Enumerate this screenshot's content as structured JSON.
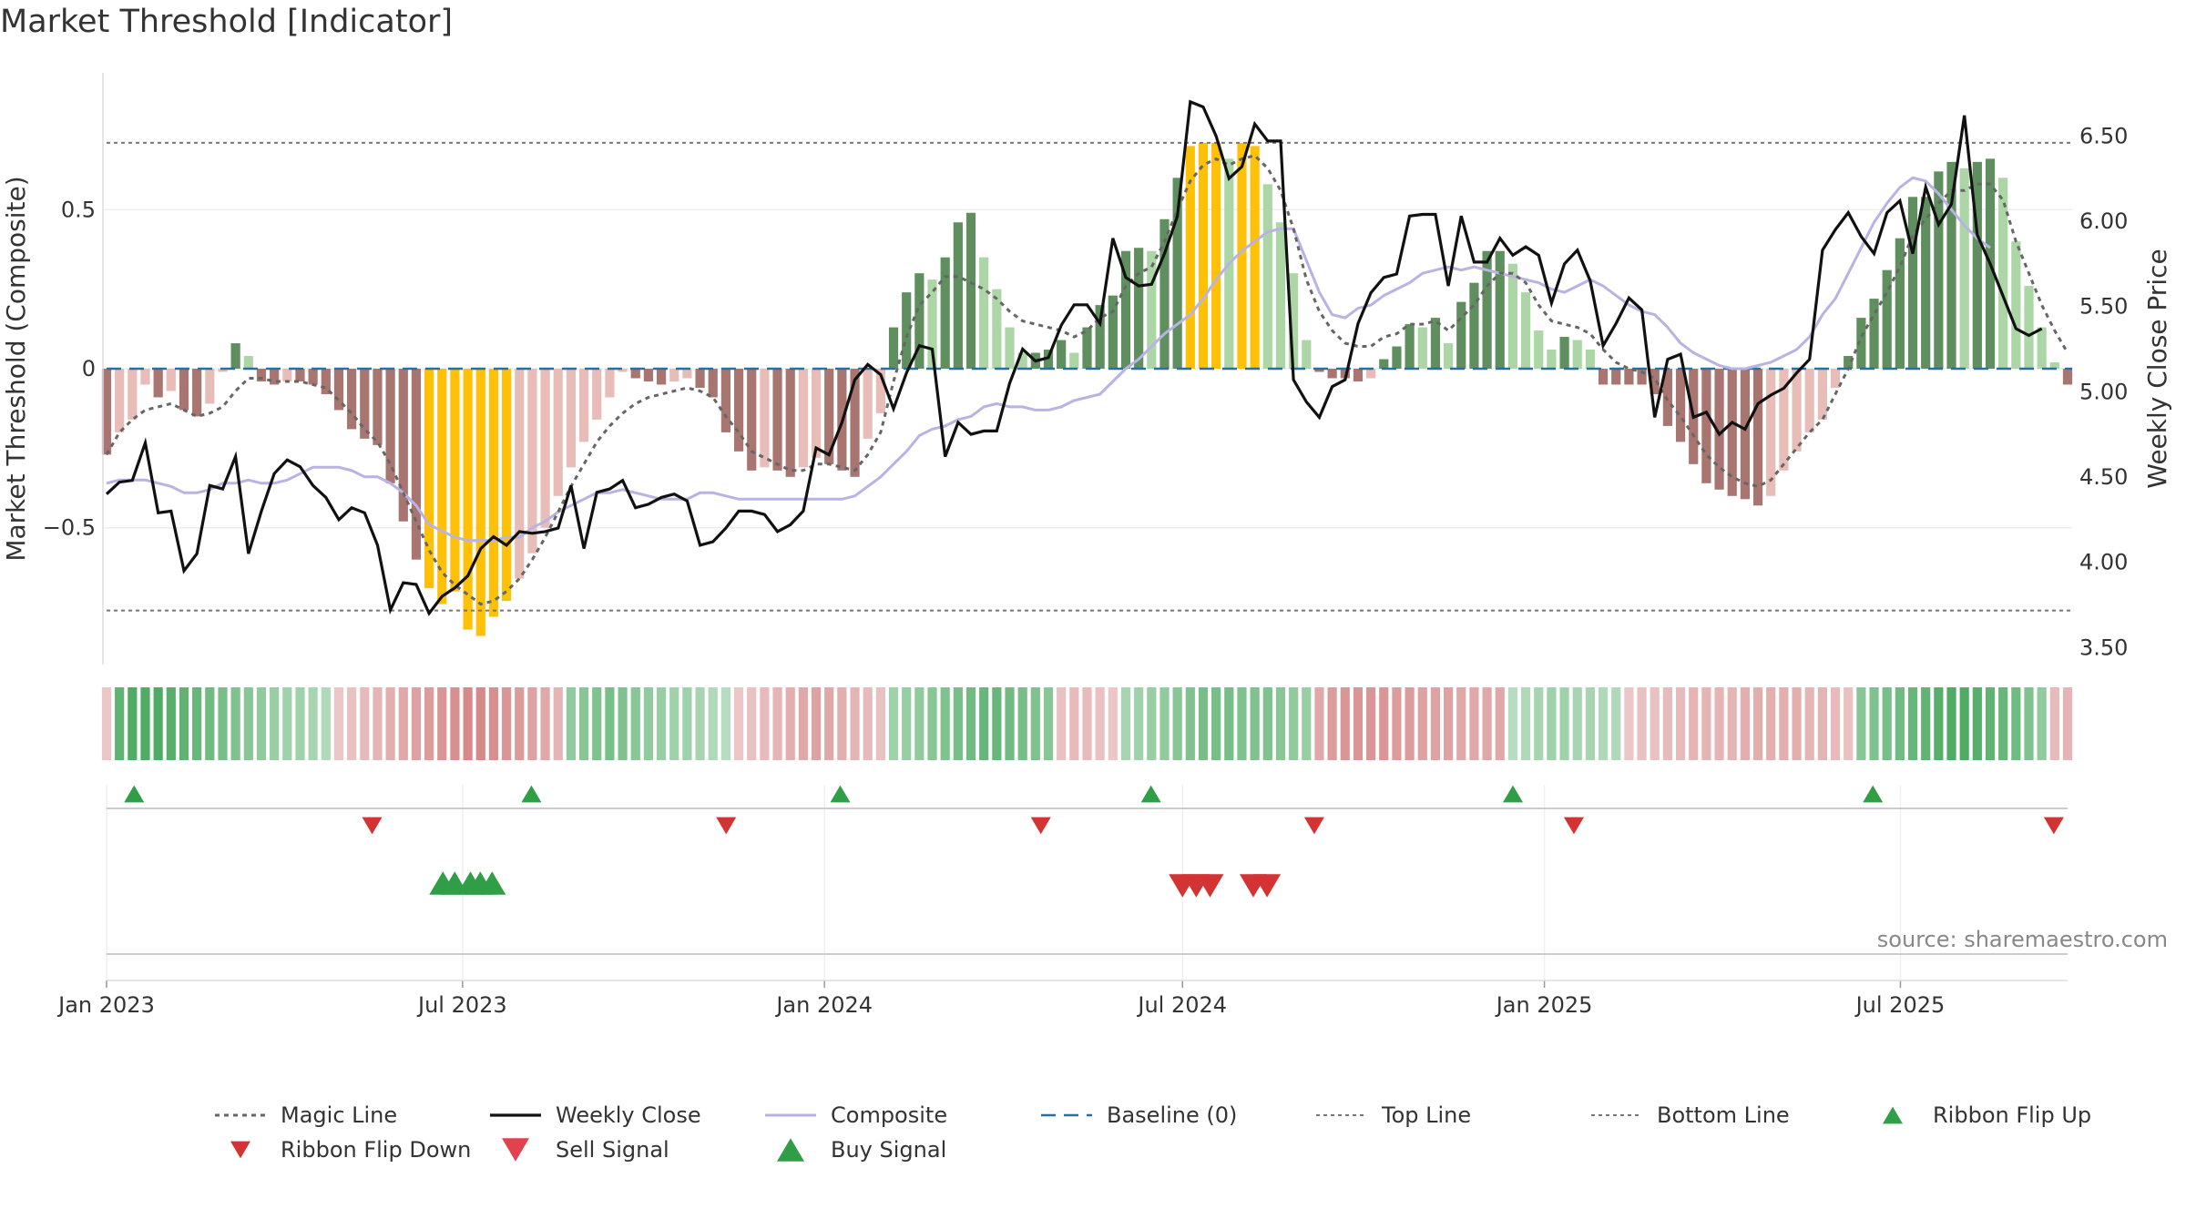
{
  "title": "Market Threshold [Indicator]",
  "source": "source: sharemaestro.com",
  "colors": {
    "dark_red": "#a87570",
    "light_red": "#e8bdb8",
    "dark_green": "#5f8f5f",
    "light_green": "#acd6a6",
    "gold": "#ffc107",
    "close": "#111111",
    "composite": "#b9b3e3",
    "magic": "#666666",
    "baseline": "#2b6f9c",
    "threshold": "#777777",
    "signal_up": "#2f9e47",
    "signal_down": "#d33333"
  },
  "chart_data": {
    "type": "bar",
    "x_ticks": [
      "Jan 2023",
      "Jul 2023",
      "Jan 2024",
      "Jul 2024",
      "Jan 2025",
      "Jul 2025"
    ],
    "y_left": {
      "label": "Market Threshold (Composite)",
      "ticks": [
        "0.5",
        "0",
        "−0.5"
      ],
      "tick_values": [
        0.5,
        0,
        -0.5
      ],
      "range": [
        -0.93,
        0.93
      ]
    },
    "y_right": {
      "label": "Weekly Close Price",
      "ticks": [
        "3.50",
        "4.00",
        "4.50",
        "5.00",
        "5.50",
        "6.00",
        "6.50"
      ],
      "tick_values": [
        3.5,
        4.0,
        4.5,
        5.0,
        5.5,
        6.0,
        6.5
      ],
      "range": [
        3.4,
        6.87
      ]
    },
    "top_line": 0.71,
    "bottom_line": -0.76,
    "bars": [
      -0.27,
      -0.2,
      -0.16,
      -0.05,
      -0.09,
      -0.07,
      -0.13,
      -0.15,
      -0.11,
      -0.01,
      0.08,
      0.04,
      -0.04,
      -0.05,
      -0.04,
      -0.04,
      -0.05,
      -0.08,
      -0.13,
      -0.19,
      -0.22,
      -0.24,
      -0.36,
      -0.48,
      -0.6,
      -0.69,
      -0.74,
      -0.7,
      -0.82,
      -0.84,
      -0.78,
      -0.73,
      -0.66,
      -0.58,
      -0.5,
      -0.4,
      -0.31,
      -0.23,
      -0.16,
      -0.09,
      -0.01,
      -0.03,
      -0.04,
      -0.05,
      -0.04,
      -0.03,
      -0.06,
      -0.09,
      -0.2,
      -0.26,
      -0.32,
      -0.31,
      -0.32,
      -0.34,
      -0.31,
      -0.28,
      -0.3,
      -0.32,
      -0.34,
      -0.22,
      -0.14,
      0.13,
      0.24,
      0.3,
      0.28,
      0.35,
      0.46,
      0.49,
      0.35,
      0.25,
      0.13,
      0.05,
      0.05,
      0.06,
      0.09,
      0.05,
      0.13,
      0.2,
      0.23,
      0.37,
      0.38,
      0.37,
      0.47,
      0.6,
      0.7,
      0.71,
      0.71,
      0.66,
      0.71,
      0.7,
      0.58,
      0.46,
      0.3,
      0.09,
      -0.01,
      -0.03,
      -0.03,
      -0.04,
      -0.03,
      0.03,
      0.07,
      0.14,
      0.13,
      0.16,
      0.08,
      0.21,
      0.27,
      0.37,
      0.37,
      0.33,
      0.24,
      0.12,
      0.06,
      0.1,
      0.09,
      0.06,
      -0.05,
      -0.05,
      -0.05,
      -0.05,
      -0.08,
      -0.18,
      -0.23,
      -0.3,
      -0.36,
      -0.38,
      -0.4,
      -0.41,
      -0.43,
      -0.4,
      -0.32,
      -0.26,
      -0.2,
      -0.16,
      -0.06,
      0.04,
      0.16,
      0.22,
      0.31,
      0.41,
      0.54,
      0.54,
      0.62,
      0.65,
      0.63,
      0.65,
      0.66,
      0.6,
      0.4,
      0.26,
      0.13,
      0.02,
      -0.05
    ],
    "magic_line": [
      -0.27,
      -0.2,
      -0.16,
      -0.13,
      -0.12,
      -0.11,
      -0.13,
      -0.15,
      -0.14,
      -0.12,
      -0.07,
      -0.03,
      -0.03,
      -0.04,
      -0.04,
      -0.04,
      -0.05,
      -0.06,
      -0.1,
      -0.14,
      -0.19,
      -0.23,
      -0.3,
      -0.39,
      -0.48,
      -0.57,
      -0.64,
      -0.68,
      -0.71,
      -0.74,
      -0.73,
      -0.7,
      -0.66,
      -0.6,
      -0.53,
      -0.45,
      -0.37,
      -0.3,
      -0.23,
      -0.18,
      -0.14,
      -0.11,
      -0.09,
      -0.08,
      -0.07,
      -0.06,
      -0.07,
      -0.09,
      -0.15,
      -0.2,
      -0.26,
      -0.28,
      -0.3,
      -0.32,
      -0.32,
      -0.3,
      -0.3,
      -0.31,
      -0.32,
      -0.27,
      -0.2,
      -0.04,
      0.1,
      0.2,
      0.24,
      0.29,
      0.29,
      0.27,
      0.25,
      0.22,
      0.18,
      0.15,
      0.14,
      0.13,
      0.12,
      0.1,
      0.12,
      0.16,
      0.18,
      0.26,
      0.3,
      0.32,
      0.4,
      0.5,
      0.59,
      0.64,
      0.66,
      0.64,
      0.66,
      0.67,
      0.63,
      0.56,
      0.44,
      0.28,
      0.18,
      0.12,
      0.08,
      0.07,
      0.07,
      0.1,
      0.11,
      0.14,
      0.14,
      0.15,
      0.12,
      0.16,
      0.2,
      0.26,
      0.3,
      0.3,
      0.27,
      0.2,
      0.15,
      0.14,
      0.13,
      0.11,
      0.06,
      0.02,
      0.0,
      -0.01,
      -0.03,
      -0.1,
      -0.15,
      -0.21,
      -0.27,
      -0.31,
      -0.34,
      -0.36,
      -0.37,
      -0.35,
      -0.3,
      -0.25,
      -0.2,
      -0.16,
      -0.08,
      0.0,
      0.1,
      0.17,
      0.24,
      0.32,
      0.42,
      0.47,
      0.52,
      0.56,
      0.56,
      0.58,
      0.58,
      0.53,
      0.4,
      0.3,
      0.2,
      0.12,
      0.05
    ],
    "composite": [
      -0.36,
      -0.35,
      -0.35,
      -0.35,
      -0.36,
      -0.37,
      -0.39,
      -0.39,
      -0.38,
      -0.36,
      -0.36,
      -0.35,
      -0.36,
      -0.36,
      -0.35,
      -0.33,
      -0.31,
      -0.31,
      -0.31,
      -0.32,
      -0.34,
      -0.34,
      -0.36,
      -0.39,
      -0.43,
      -0.49,
      -0.51,
      -0.53,
      -0.54,
      -0.54,
      -0.54,
      -0.53,
      -0.53,
      -0.5,
      -0.48,
      -0.45,
      -0.43,
      -0.41,
      -0.39,
      -0.39,
      -0.38,
      -0.39,
      -0.4,
      -0.41,
      -0.41,
      -0.41,
      -0.39,
      -0.39,
      -0.4,
      -0.41,
      -0.41,
      -0.41,
      -0.41,
      -0.41,
      -0.41,
      -0.41,
      -0.41,
      -0.41,
      -0.4,
      -0.37,
      -0.34,
      -0.3,
      -0.26,
      -0.21,
      -0.19,
      -0.18,
      -0.16,
      -0.15,
      -0.12,
      -0.11,
      -0.12,
      -0.12,
      -0.13,
      -0.13,
      -0.12,
      -0.1,
      -0.09,
      -0.08,
      -0.04,
      0.0,
      0.03,
      0.07,
      0.11,
      0.14,
      0.17,
      0.22,
      0.28,
      0.33,
      0.37,
      0.4,
      0.43,
      0.44,
      0.44,
      0.34,
      0.24,
      0.17,
      0.16,
      0.19,
      0.2,
      0.23,
      0.25,
      0.27,
      0.3,
      0.31,
      0.32,
      0.31,
      0.32,
      0.31,
      0.3,
      0.29,
      0.28,
      0.27,
      0.25,
      0.24,
      0.26,
      0.28,
      0.26,
      0.23,
      0.2,
      0.18,
      0.17,
      0.13,
      0.08,
      0.05,
      0.03,
      0.01,
      0.0,
      0.0,
      0.01,
      0.02,
      0.04,
      0.06,
      0.1,
      0.17,
      0.22,
      0.3,
      0.38,
      0.46,
      0.52,
      0.57,
      0.6,
      0.59,
      0.55,
      0.5,
      0.45,
      0.41,
      0.38
    ],
    "weekly_close": [
      4.4,
      4.47,
      4.48,
      4.7,
      4.29,
      4.3,
      3.95,
      4.05,
      4.45,
      4.43,
      4.62,
      4.05,
      4.3,
      4.52,
      4.6,
      4.56,
      4.45,
      4.38,
      4.25,
      4.32,
      4.29,
      4.1,
      3.72,
      3.88,
      3.87,
      3.7,
      3.8,
      3.85,
      3.92,
      4.08,
      4.15,
      4.1,
      4.18,
      4.17,
      4.18,
      4.2,
      4.45,
      4.08,
      4.41,
      4.43,
      4.48,
      4.32,
      4.34,
      4.38,
      4.4,
      4.36,
      4.1,
      4.12,
      4.2,
      4.3,
      4.3,
      4.28,
      4.18,
      4.22,
      4.3,
      4.67,
      4.63,
      4.82,
      5.07,
      5.16,
      5.1,
      4.9,
      5.11,
      5.27,
      5.25,
      4.62,
      4.82,
      4.75,
      4.77,
      4.77,
      5.05,
      5.25,
      5.18,
      5.2,
      5.39,
      5.51,
      5.51,
      5.4,
      5.9,
      5.67,
      5.62,
      5.63,
      5.81,
      6.03,
      6.7,
      6.67,
      6.5,
      6.25,
      6.32,
      6.57,
      6.47,
      6.47,
      5.07,
      4.94,
      4.85,
      5.03,
      5.07,
      5.4,
      5.58,
      5.67,
      5.69,
      6.03,
      6.04,
      6.04,
      5.62,
      6.03,
      5.76,
      5.76,
      5.9,
      5.8,
      5.85,
      5.8,
      5.52,
      5.75,
      5.83,
      5.65,
      5.27,
      5.4,
      5.55,
      5.48,
      4.85,
      5.19,
      5.22,
      4.85,
      4.88,
      4.75,
      4.82,
      4.78,
      4.93,
      4.98,
      5.02,
      5.11,
      5.19,
      5.83,
      5.95,
      6.05,
      5.91,
      5.81,
      6.05,
      6.12,
      5.81,
      6.2,
      5.98,
      6.1,
      6.62,
      5.92,
      5.75,
      5.56,
      5.37,
      5.33,
      5.37
    ]
  },
  "ribbon": {
    "levels": [
      -0.2,
      0.75,
      0.85,
      0.85,
      0.85,
      0.8,
      0.75,
      0.7,
      0.65,
      0.6,
      0.55,
      0.5,
      0.45,
      0.4,
      0.35,
      0.35,
      0.3,
      0.25,
      -0.2,
      -0.25,
      -0.3,
      -0.35,
      -0.4,
      -0.45,
      -0.5,
      -0.55,
      -0.6,
      -0.65,
      -0.7,
      -0.7,
      -0.65,
      -0.6,
      -0.55,
      -0.5,
      -0.45,
      -0.35,
      0.45,
      0.5,
      0.55,
      0.6,
      0.55,
      0.5,
      0.45,
      0.4,
      0.35,
      0.35,
      0.3,
      0.25,
      0.2,
      -0.2,
      -0.25,
      -0.3,
      -0.35,
      -0.4,
      -0.45,
      -0.5,
      -0.45,
      -0.4,
      -0.35,
      -0.3,
      -0.25,
      0.35,
      0.4,
      0.45,
      0.5,
      0.55,
      0.6,
      0.65,
      0.7,
      0.7,
      0.65,
      0.6,
      0.55,
      0.5,
      -0.25,
      -0.3,
      -0.3,
      -0.25,
      -0.2,
      0.3,
      0.35,
      0.4,
      0.45,
      0.5,
      0.55,
      0.6,
      0.6,
      0.6,
      0.55,
      0.55,
      0.55,
      0.5,
      0.45,
      0.4,
      -0.45,
      -0.55,
      -0.6,
      -0.6,
      -0.6,
      -0.6,
      -0.55,
      -0.55,
      -0.5,
      -0.5,
      -0.5,
      -0.45,
      -0.45,
      -0.45,
      -0.45,
      0.2,
      0.25,
      0.3,
      0.35,
      0.35,
      0.3,
      0.3,
      0.25,
      0.25,
      -0.2,
      -0.25,
      -0.25,
      -0.3,
      -0.3,
      -0.35,
      -0.35,
      -0.35,
      -0.35,
      -0.4,
      -0.4,
      -0.4,
      -0.4,
      -0.4,
      -0.35,
      -0.35,
      -0.3,
      -0.25,
      0.5,
      0.55,
      0.6,
      0.65,
      0.7,
      0.75,
      0.8,
      0.85,
      0.85,
      0.8,
      0.75,
      0.7,
      0.65,
      0.55,
      0.45,
      -0.3,
      -0.35
    ]
  },
  "signals": {
    "ribbon_flip_up": [
      "Jan 2023",
      "Aug 2023",
      "Jan 2024",
      "Jun 2024",
      "Dec 2024",
      "Jun 2025"
    ],
    "ribbon_flip_down": [
      "May 2023",
      "Nov 2023",
      "Apr 2024",
      "Sep 2024",
      "Jan 2025",
      "Sep 2025"
    ],
    "buy_signal": [
      "Jun 2023",
      "Jun 2023",
      "Jul 2023",
      "Jul 2023",
      "Jul 2023"
    ],
    "sell_signal": [
      "Jul 2024",
      "Jul 2024",
      "Jul 2024",
      "Aug 2024",
      "Aug 2024"
    ]
  },
  "legend": [
    {
      "label": "Magic Line",
      "type": "line-dotted"
    },
    {
      "label": "Weekly Close",
      "type": "line-solid"
    },
    {
      "label": "Composite",
      "type": "line-composite"
    },
    {
      "label": "Baseline (0)",
      "type": "line-dashed"
    },
    {
      "label": "Top Line",
      "type": "line-thin-dotted"
    },
    {
      "label": "Bottom Line",
      "type": "line-thin-dotted"
    },
    {
      "label": "Ribbon Flip Up",
      "type": "triangle-up-small"
    },
    {
      "label": "Ribbon Flip Down",
      "type": "triangle-down-small"
    },
    {
      "label": "Sell Signal",
      "type": "triangle-down-large"
    },
    {
      "label": "Buy Signal",
      "type": "triangle-up-large"
    }
  ]
}
